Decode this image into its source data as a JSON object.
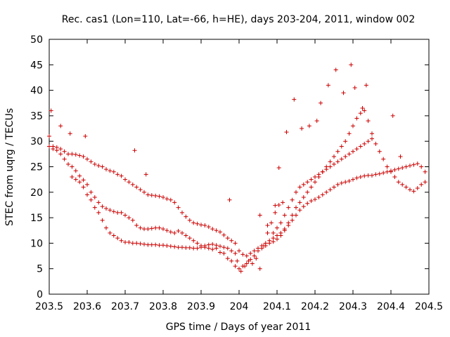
{
  "chart_data": {
    "type": "scatter",
    "title": "Rec. cas1 (Lon=110, Lat=-66, h=HE), days 203-204, 2011, window 002",
    "xlabel": "GPS time / Days of year 2011",
    "ylabel": "STEC from uqrg / TECUs",
    "xlim": [
      203.5,
      204.5
    ],
    "ylim": [
      0,
      50
    ],
    "xticks": [
      "203.5",
      "203.6",
      "203.7",
      "203.8",
      "203.9",
      "204",
      "204.1",
      "204.2",
      "204.3",
      "204.4",
      "204.5"
    ],
    "yticks": [
      "0",
      "5",
      "10",
      "15",
      "20",
      "25",
      "30",
      "35",
      "40",
      "45",
      "50"
    ],
    "grid": false,
    "legend": "none",
    "marker": "+",
    "color": "#cc0000",
    "series": [
      {
        "name": "STEC",
        "x": [
          203.5,
          203.51,
          203.52,
          203.53,
          203.54,
          203.55,
          203.56,
          203.57,
          203.58,
          203.59,
          203.6,
          203.61,
          203.62,
          203.63,
          203.64,
          203.65,
          203.66,
          203.67,
          203.68,
          203.69,
          203.7,
          203.71,
          203.72,
          203.73,
          203.74,
          203.75,
          203.76,
          203.77,
          203.78,
          203.79,
          203.8,
          203.81,
          203.82,
          203.83,
          203.84,
          203.85,
          203.86,
          203.87,
          203.88,
          203.89,
          203.9,
          203.91,
          203.92,
          203.93,
          203.94,
          203.95,
          203.96,
          203.97,
          203.98,
          203.99,
          204.0,
          204.01,
          204.02,
          204.03,
          204.04,
          204.05,
          204.06,
          204.07,
          204.08,
          204.09,
          204.1,
          204.11,
          204.12,
          204.13,
          204.14,
          204.15,
          204.16,
          204.17,
          204.18,
          204.19,
          204.2,
          204.21,
          204.22,
          204.23,
          204.24,
          204.25,
          204.26,
          204.27,
          204.28,
          204.29,
          204.3,
          204.31,
          204.32,
          204.33,
          204.34,
          204.35,
          204.36,
          204.37,
          204.38,
          204.39,
          204.4,
          204.41,
          204.42,
          204.43,
          204.44,
          204.45,
          204.46,
          204.47,
          204.48,
          204.49,
          203.5,
          203.51,
          203.52,
          203.53,
          203.54,
          203.55,
          203.56,
          203.57,
          203.58,
          203.59,
          203.6,
          203.61,
          203.62,
          203.63,
          203.64,
          203.65,
          203.66,
          203.67,
          203.68,
          203.69,
          203.7,
          203.71,
          203.72,
          203.73,
          203.74,
          203.75,
          203.76,
          203.77,
          203.78,
          203.79,
          203.8,
          203.81,
          203.82,
          203.83,
          203.84,
          203.85,
          203.86,
          203.87,
          203.88,
          203.89,
          203.9,
          203.91,
          203.92,
          203.93,
          203.94,
          203.95,
          203.96,
          203.97,
          203.98,
          203.99,
          204.0,
          204.01,
          204.02,
          204.03,
          204.04,
          204.05,
          204.06,
          204.07,
          204.08,
          204.09,
          204.1,
          204.11,
          204.12,
          204.13,
          204.14,
          204.15,
          204.16,
          204.17,
          204.18,
          204.19,
          204.2,
          204.21,
          204.22,
          204.23,
          204.24,
          204.25,
          204.26,
          204.27,
          204.28,
          204.29,
          204.3,
          204.31,
          204.32,
          204.33,
          204.34,
          204.35,
          204.36,
          204.37,
          204.38,
          204.39,
          204.4,
          204.41,
          204.42,
          204.43,
          204.44,
          204.45,
          204.46,
          204.47,
          204.48,
          204.49,
          203.56,
          203.57,
          203.58,
          203.59,
          203.6,
          203.61,
          203.62,
          203.63,
          203.64,
          203.65,
          203.66,
          203.67,
          203.68,
          203.69,
          203.7,
          203.71,
          203.72,
          203.73,
          203.74,
          203.75,
          203.76,
          203.77,
          203.78,
          203.79,
          203.8,
          203.81,
          203.82,
          203.83,
          203.84,
          203.85,
          203.86,
          203.87,
          203.88,
          203.89,
          203.9,
          203.91,
          203.92,
          203.93,
          203.94,
          203.95,
          203.96,
          203.97,
          203.98,
          203.99,
          204.09,
          204.1,
          204.11,
          204.12,
          204.13,
          204.14,
          204.15,
          204.16,
          204.17,
          204.18,
          204.19,
          204.2,
          204.21,
          204.22,
          204.23,
          204.24,
          204.25,
          204.26,
          204.27,
          204.28,
          204.29,
          204.3,
          204.31,
          204.32,
          204.33,
          204.34,
          204.35,
          203.505,
          203.53,
          203.555,
          203.595,
          203.725,
          203.755,
          203.975,
          204.105,
          204.125,
          204.145,
          204.165,
          204.185,
          204.205,
          204.215,
          204.235,
          204.255,
          204.275,
          204.295,
          204.305,
          204.325,
          204.335,
          204.405,
          204.425,
          203.995,
          204.005,
          204.015,
          204.025,
          204.035,
          204.045,
          204.055,
          204.065,
          204.075,
          204.085,
          204.095,
          204.105,
          204.115,
          204.055,
          204.075,
          204.095
        ],
        "y": [
          31.0,
          29.0,
          28.8,
          28.5,
          28.0,
          27.5,
          27.5,
          27.4,
          27.2,
          27.0,
          26.5,
          26.0,
          25.5,
          25.2,
          25.0,
          24.5,
          24.2,
          24.0,
          23.5,
          23.2,
          22.5,
          22.0,
          21.5,
          21.0,
          20.5,
          20.0,
          19.5,
          19.4,
          19.3,
          19.2,
          19.0,
          18.7,
          18.5,
          18.0,
          17.0,
          16.0,
          15.2,
          14.5,
          14.0,
          13.8,
          13.6,
          13.5,
          13.2,
          12.8,
          12.5,
          12.2,
          11.6,
          11.0,
          10.5,
          10.0,
          8.5,
          7.8,
          7.5,
          8.0,
          8.5,
          9.0,
          9.5,
          10.0,
          10.5,
          11.0,
          11.5,
          12.0,
          12.8,
          13.5,
          14.5,
          15.5,
          16.5,
          17.2,
          17.8,
          18.3,
          18.6,
          19.0,
          19.5,
          20.0,
          20.5,
          21.0,
          21.5,
          21.8,
          22.0,
          22.2,
          22.5,
          22.8,
          23.0,
          23.2,
          23.3,
          23.3,
          23.5,
          23.6,
          23.8,
          24.0,
          24.2,
          24.4,
          24.6,
          24.8,
          25.0,
          25.2,
          25.4,
          25.6,
          25.0,
          24.0,
          29.0,
          28.5,
          28.2,
          27.5,
          26.5,
          25.5,
          25.0,
          24.2,
          23.2,
          22.4,
          21.5,
          20.0,
          19.0,
          18.0,
          17.2,
          16.8,
          16.5,
          16.2,
          16.0,
          16.0,
          15.5,
          15.0,
          14.5,
          13.5,
          13.0,
          12.8,
          12.8,
          12.9,
          13.0,
          13.0,
          12.8,
          12.5,
          12.2,
          12.0,
          12.4,
          12.0,
          11.5,
          11.0,
          10.5,
          10.0,
          9.5,
          9.2,
          9.0,
          8.8,
          9.0,
          8.2,
          8.0,
          7.0,
          6.5,
          5.5,
          5.0,
          5.5,
          6.0,
          6.8,
          7.5,
          8.5,
          9.0,
          9.5,
          10.0,
          10.3,
          10.8,
          11.5,
          12.5,
          14.0,
          15.5,
          17.0,
          18.0,
          19.0,
          20.0,
          21.0,
          22.0,
          23.0,
          24.0,
          25.0,
          26.0,
          27.0,
          28.0,
          29.0,
          30.0,
          31.5,
          33.0,
          34.5,
          35.5,
          36.0,
          34.0,
          31.5,
          29.5,
          28.0,
          26.5,
          25.0,
          24.0,
          23.0,
          22.0,
          21.5,
          21.0,
          20.5,
          20.2,
          20.8,
          21.5,
          22.0,
          23.0,
          22.5,
          22.0,
          21.0,
          19.5,
          18.5,
          17.0,
          16.0,
          14.5,
          13.0,
          12.0,
          11.5,
          11.0,
          10.5,
          10.2,
          10.2,
          10.0,
          10.0,
          9.9,
          9.8,
          9.7,
          9.7,
          9.7,
          9.6,
          9.6,
          9.5,
          9.4,
          9.3,
          9.2,
          9.2,
          9.1,
          9.1,
          9.0,
          9.0,
          9.2,
          9.5,
          9.7,
          9.8,
          9.6,
          9.4,
          9.2,
          9.0,
          8.5,
          8.0,
          12.0,
          13.0,
          14.0,
          15.5,
          17.0,
          18.5,
          20.0,
          21.0,
          21.5,
          22.0,
          22.5,
          23.0,
          23.5,
          24.0,
          24.5,
          25.0,
          25.5,
          26.0,
          26.5,
          27.0,
          27.5,
          28.0,
          28.5,
          29.0,
          29.5,
          30.0,
          30.5,
          36.0,
          33.0,
          31.5,
          31.0,
          28.2,
          23.5,
          18.5,
          24.8,
          31.8,
          38.2,
          32.5,
          33.0,
          34.0,
          37.5,
          41.0,
          44.0,
          39.5,
          45.0,
          40.5,
          36.5,
          41.0,
          35.0,
          27.0,
          6.5,
          4.5,
          5.5,
          6.5,
          6.0,
          7.0,
          5.0,
          9.5,
          12.0,
          14.0,
          16.0,
          17.5,
          18.0,
          15.5,
          13.5,
          17.4
        ]
      }
    ]
  }
}
